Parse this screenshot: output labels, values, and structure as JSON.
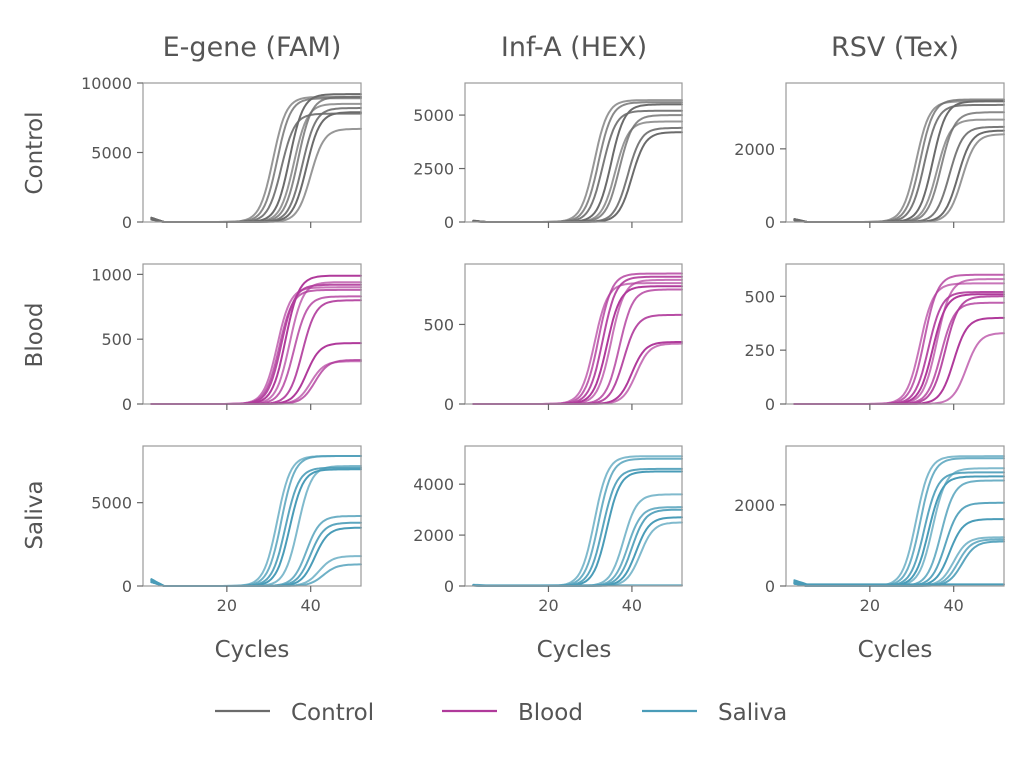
{
  "chart_data": {
    "type": "line",
    "xlabel": "Cycles",
    "columns": [
      "E-gene (FAM)",
      "Inf-A (HEX)",
      "RSV (Tex)"
    ],
    "rows": [
      "Control",
      "Blood",
      "Saliva"
    ],
    "legend": {
      "placement": "bottom-center",
      "entries": [
        {
          "name": "Control",
          "color": "#6b6b6b"
        },
        {
          "name": "Blood",
          "color": "#b03a9b"
        },
        {
          "name": "Saliva",
          "color": "#4a9cb8"
        }
      ]
    },
    "xlim": [
      0,
      52
    ],
    "xticks": [
      20,
      40
    ],
    "panels": [
      {
        "row": "Control",
        "column": "E-gene (FAM)",
        "color": "#6b6b6b",
        "ylim": [
          0,
          10000
        ],
        "yticks": [
          0,
          5000,
          10000
        ],
        "spike": 300,
        "curves": [
          {
            "ct": 31,
            "max": 9000
          },
          {
            "ct": 32,
            "max": 8900
          },
          {
            "ct": 33,
            "max": 7800
          },
          {
            "ct": 35,
            "max": 9200
          },
          {
            "ct": 36,
            "max": 8500
          },
          {
            "ct": 37,
            "max": 9000
          },
          {
            "ct": 38,
            "max": 8200
          },
          {
            "ct": 39,
            "max": 7900
          },
          {
            "ct": 40,
            "max": 6700
          }
        ]
      },
      {
        "row": "Control",
        "column": "Inf-A (HEX)",
        "color": "#6b6b6b",
        "ylim": [
          0,
          6500
        ],
        "yticks": [
          0,
          2500,
          5000
        ],
        "spike": 60,
        "curves": [
          {
            "ct": 31,
            "max": 5700
          },
          {
            "ct": 32,
            "max": 5600
          },
          {
            "ct": 33,
            "max": 5200
          },
          {
            "ct": 35,
            "max": 5500
          },
          {
            "ct": 36,
            "max": 4700
          },
          {
            "ct": 37,
            "max": 5000
          },
          {
            "ct": 39,
            "max": 4400
          },
          {
            "ct": 40,
            "max": 4200
          }
        ]
      },
      {
        "row": "Control",
        "column": "RSV (Tex)",
        "color": "#6b6b6b",
        "ylim": [
          0,
          3800
        ],
        "yticks": [
          0,
          2000
        ],
        "spike": 80,
        "curves": [
          {
            "ct": 31,
            "max": 3300
          },
          {
            "ct": 32,
            "max": 3350
          },
          {
            "ct": 33,
            "max": 3200
          },
          {
            "ct": 35,
            "max": 3300
          },
          {
            "ct": 36,
            "max": 2800
          },
          {
            "ct": 37,
            "max": 3000
          },
          {
            "ct": 39,
            "max": 2600
          },
          {
            "ct": 41,
            "max": 2500
          },
          {
            "ct": 42,
            "max": 2400
          }
        ]
      },
      {
        "row": "Blood",
        "column": "E-gene (FAM)",
        "color": "#b03a9b",
        "ylim": [
          0,
          1080
        ],
        "yticks": [
          0,
          500,
          1000
        ],
        "spike": 0,
        "curves": [
          {
            "ct": 32,
            "max": 900
          },
          {
            "ct": 32.5,
            "max": 880
          },
          {
            "ct": 33,
            "max": 920
          },
          {
            "ct": 34,
            "max": 990
          },
          {
            "ct": 35,
            "max": 940
          },
          {
            "ct": 36,
            "max": 830
          },
          {
            "ct": 38,
            "max": 800
          },
          {
            "ct": 39,
            "max": 470
          },
          {
            "ct": 40,
            "max": 330
          },
          {
            "ct": 41,
            "max": 340
          }
        ]
      },
      {
        "row": "Blood",
        "column": "Inf-A (HEX)",
        "color": "#b03a9b",
        "ylim": [
          0,
          880
        ],
        "yticks": [
          0,
          500
        ],
        "spike": 0,
        "curves": [
          {
            "ct": 31,
            "max": 760
          },
          {
            "ct": 32,
            "max": 820
          },
          {
            "ct": 33,
            "max": 800
          },
          {
            "ct": 34,
            "max": 740
          },
          {
            "ct": 35,
            "max": 780
          },
          {
            "ct": 37,
            "max": 720
          },
          {
            "ct": 38,
            "max": 560
          },
          {
            "ct": 40,
            "max": 390
          },
          {
            "ct": 41,
            "max": 380
          }
        ]
      },
      {
        "row": "Blood",
        "column": "RSV (Tex)",
        "color": "#b03a9b",
        "ylim": [
          0,
          650
        ],
        "yticks": [
          0,
          250,
          500
        ],
        "spike": 0,
        "curves": [
          {
            "ct": 32,
            "max": 560
          },
          {
            "ct": 33,
            "max": 600
          },
          {
            "ct": 34,
            "max": 520
          },
          {
            "ct": 35,
            "max": 510
          },
          {
            "ct": 36,
            "max": 580
          },
          {
            "ct": 37,
            "max": 470
          },
          {
            "ct": 38,
            "max": 500
          },
          {
            "ct": 40,
            "max": 400
          },
          {
            "ct": 43,
            "max": 330
          }
        ]
      },
      {
        "row": "Saliva",
        "column": "E-gene (FAM)",
        "color": "#4a9cb8",
        "ylim": [
          0,
          8400
        ],
        "yticks": [
          0,
          5000
        ],
        "spike": 400,
        "curves": [
          {
            "ct": 32,
            "max": 7800
          },
          {
            "ct": 33,
            "max": 7800
          },
          {
            "ct": 34,
            "max": 7100
          },
          {
            "ct": 35,
            "max": 7000
          },
          {
            "ct": 37,
            "max": 7200
          },
          {
            "ct": 39,
            "max": 4200
          },
          {
            "ct": 40,
            "max": 3800
          },
          {
            "ct": 41,
            "max": 3500
          },
          {
            "ct": 42,
            "max": 1800
          },
          {
            "ct": 43,
            "max": 1300
          }
        ]
      },
      {
        "row": "Saliva",
        "column": "Inf-A (HEX)",
        "color": "#4a9cb8",
        "ylim": [
          0,
          5500
        ],
        "yticks": [
          0,
          2000,
          4000
        ],
        "spike": 30,
        "curves": [
          {
            "ct": 31,
            "max": 5100
          },
          {
            "ct": 32,
            "max": 5000
          },
          {
            "ct": 33,
            "max": 4600
          },
          {
            "ct": 34,
            "max": 4500
          },
          {
            "ct": 38,
            "max": 3600
          },
          {
            "ct": 39,
            "max": 3100
          },
          {
            "ct": 40,
            "max": 3000
          },
          {
            "ct": 41,
            "max": 2700
          },
          {
            "ct": 42,
            "max": 2500
          },
          {
            "ct": 0,
            "max": 30
          }
        ]
      },
      {
        "row": "Saliva",
        "column": "RSV (Tex)",
        "color": "#4a9cb8",
        "ylim": [
          0,
          3450
        ],
        "yticks": [
          0,
          2000
        ],
        "spike": 100,
        "curves": [
          {
            "ct": 31,
            "max": 3200
          },
          {
            "ct": 32,
            "max": 3150
          },
          {
            "ct": 33,
            "max": 2800
          },
          {
            "ct": 34,
            "max": 2700
          },
          {
            "ct": 35,
            "max": 2900
          },
          {
            "ct": 37,
            "max": 2600
          },
          {
            "ct": 38,
            "max": 2050
          },
          {
            "ct": 39,
            "max": 1650
          },
          {
            "ct": 40,
            "max": 1200
          },
          {
            "ct": 41,
            "max": 1150
          },
          {
            "ct": 42,
            "max": 1100
          },
          {
            "ct": 0,
            "max": 40
          }
        ]
      }
    ]
  }
}
